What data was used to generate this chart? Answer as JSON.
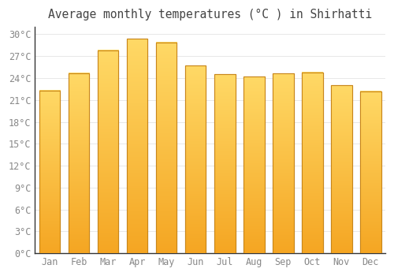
{
  "title": "Average monthly temperatures (°C ) in Shirhatti",
  "months": [
    "Jan",
    "Feb",
    "Mar",
    "Apr",
    "May",
    "Jun",
    "Jul",
    "Aug",
    "Sep",
    "Oct",
    "Nov",
    "Dec"
  ],
  "values": [
    22.3,
    24.7,
    27.8,
    29.4,
    28.9,
    25.7,
    24.5,
    24.2,
    24.6,
    24.8,
    23.0,
    22.2
  ],
  "bar_color_top": "#FFD966",
  "bar_color_bottom": "#F5A623",
  "bar_edge_color": "#C8861A",
  "background_color": "#FFFFFF",
  "grid_color": "#E8E8E8",
  "tick_label_color": "#888888",
  "title_color": "#444444",
  "ylim": [
    0,
    31
  ],
  "yticks": [
    0,
    3,
    6,
    9,
    12,
    15,
    18,
    21,
    24,
    27,
    30
  ],
  "title_fontsize": 10.5,
  "tick_fontsize": 8.5
}
